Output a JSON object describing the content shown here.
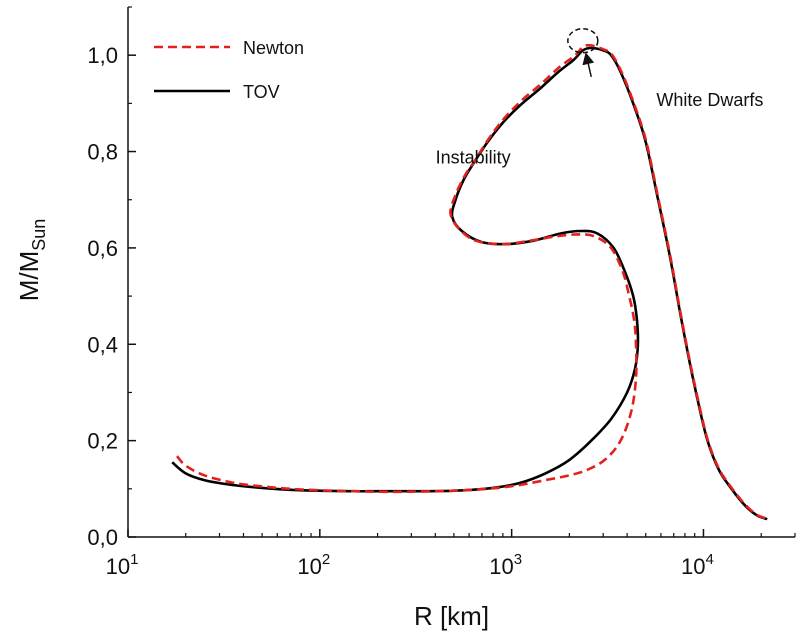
{
  "chart_data": {
    "type": "line",
    "title": "",
    "xlabel": "R [km]",
    "ylabel_main": "M/M",
    "ylabel_sub": "Sun",
    "xscale": "log",
    "xlim": [
      10,
      30000
    ],
    "ylim": [
      0,
      1.1
    ],
    "x_ticks": [
      {
        "value": 10,
        "base": "10",
        "exp": "1"
      },
      {
        "value": 100,
        "base": "10",
        "exp": "2"
      },
      {
        "value": 1000,
        "base": "10",
        "exp": "3"
      },
      {
        "value": 10000,
        "base": "10",
        "exp": "4"
      }
    ],
    "y_ticks": [
      {
        "value": 0.0,
        "label": "0,0"
      },
      {
        "value": 0.2,
        "label": "0,2"
      },
      {
        "value": 0.4,
        "label": "0,4"
      },
      {
        "value": 0.6,
        "label": "0,6"
      },
      {
        "value": 0.8,
        "label": "0,8"
      },
      {
        "value": 1.0,
        "label": "1,0"
      }
    ],
    "legend": {
      "position": "top-left",
      "entries": [
        {
          "name": "Newton",
          "color": "#e3211c",
          "style": "dashed"
        },
        {
          "name": "TOV",
          "color": "#000000",
          "style": "solid"
        }
      ]
    },
    "series": [
      {
        "name": "TOV",
        "color": "#000000",
        "style": "solid",
        "points": [
          [
            17,
            0.155
          ],
          [
            20,
            0.132
          ],
          [
            25,
            0.118
          ],
          [
            35,
            0.108
          ],
          [
            50,
            0.102
          ],
          [
            70,
            0.098
          ],
          [
            100,
            0.096
          ],
          [
            150,
            0.095
          ],
          [
            200,
            0.095
          ],
          [
            300,
            0.095
          ],
          [
            500,
            0.096
          ],
          [
            800,
            0.102
          ],
          [
            1100,
            0.112
          ],
          [
            1500,
            0.132
          ],
          [
            2000,
            0.16
          ],
          [
            2600,
            0.2
          ],
          [
            3300,
            0.245
          ],
          [
            4000,
            0.3
          ],
          [
            4400,
            0.35
          ],
          [
            4550,
            0.4
          ],
          [
            4500,
            0.45
          ],
          [
            4300,
            0.5
          ],
          [
            3900,
            0.55
          ],
          [
            3400,
            0.6
          ],
          [
            2800,
            0.63
          ],
          [
            2300,
            0.635
          ],
          [
            1800,
            0.63
          ],
          [
            1300,
            0.615
          ],
          [
            950,
            0.608
          ],
          [
            700,
            0.612
          ],
          [
            550,
            0.635
          ],
          [
            490,
            0.665
          ],
          [
            510,
            0.7
          ],
          [
            560,
            0.74
          ],
          [
            620,
            0.77
          ],
          [
            750,
            0.82
          ],
          [
            900,
            0.86
          ],
          [
            1100,
            0.895
          ],
          [
            1400,
            0.93
          ],
          [
            1750,
            0.965
          ],
          [
            2100,
            0.99
          ],
          [
            2350,
            1.01
          ],
          [
            2600,
            1.015
          ],
          [
            3000,
            1.01
          ],
          [
            3300,
            1.0
          ],
          [
            3700,
            0.965
          ],
          [
            4300,
            0.9
          ],
          [
            5000,
            0.82
          ],
          [
            5800,
            0.7
          ],
          [
            6700,
            0.58
          ],
          [
            7600,
            0.46
          ],
          [
            8500,
            0.36
          ],
          [
            9500,
            0.27
          ],
          [
            10500,
            0.2
          ],
          [
            12000,
            0.14
          ],
          [
            14000,
            0.1
          ],
          [
            16500,
            0.065
          ],
          [
            19000,
            0.045
          ],
          [
            21500,
            0.037
          ]
        ]
      },
      {
        "name": "Newton",
        "color": "#e3211c",
        "style": "dashed",
        "points": [
          [
            18,
            0.168
          ],
          [
            20,
            0.148
          ],
          [
            25,
            0.128
          ],
          [
            35,
            0.113
          ],
          [
            50,
            0.105
          ],
          [
            70,
            0.1
          ],
          [
            100,
            0.097
          ],
          [
            150,
            0.095
          ],
          [
            200,
            0.094
          ],
          [
            300,
            0.094
          ],
          [
            500,
            0.096
          ],
          [
            800,
            0.101
          ],
          [
            1100,
            0.108
          ],
          [
            1500,
            0.118
          ],
          [
            2000,
            0.128
          ],
          [
            2500,
            0.14
          ],
          [
            3100,
            0.162
          ],
          [
            3700,
            0.2
          ],
          [
            4200,
            0.26
          ],
          [
            4450,
            0.33
          ],
          [
            4450,
            0.4
          ],
          [
            4350,
            0.45
          ],
          [
            4100,
            0.5
          ],
          [
            3800,
            0.55
          ],
          [
            3300,
            0.6
          ],
          [
            2700,
            0.624
          ],
          [
            2200,
            0.628
          ],
          [
            1700,
            0.624
          ],
          [
            1250,
            0.615
          ],
          [
            900,
            0.608
          ],
          [
            650,
            0.615
          ],
          [
            530,
            0.64
          ],
          [
            480,
            0.672
          ],
          [
            510,
            0.71
          ],
          [
            570,
            0.75
          ],
          [
            640,
            0.78
          ],
          [
            770,
            0.83
          ],
          [
            920,
            0.87
          ],
          [
            1120,
            0.905
          ],
          [
            1420,
            0.94
          ],
          [
            1770,
            0.975
          ],
          [
            2120,
            0.998
          ],
          [
            2370,
            1.018
          ],
          [
            2620,
            1.02
          ],
          [
            3020,
            1.012
          ],
          [
            3320,
            1.002
          ],
          [
            3720,
            0.967
          ],
          [
            4320,
            0.902
          ],
          [
            5020,
            0.822
          ],
          [
            5820,
            0.702
          ],
          [
            6720,
            0.582
          ],
          [
            7620,
            0.462
          ],
          [
            8520,
            0.362
          ],
          [
            9520,
            0.272
          ],
          [
            10520,
            0.202
          ],
          [
            12020,
            0.142
          ],
          [
            14020,
            0.102
          ],
          [
            16520,
            0.067
          ],
          [
            19020,
            0.046
          ],
          [
            21500,
            0.038
          ]
        ]
      }
    ],
    "annotations": [
      {
        "text": "Instability",
        "x": 630,
        "y": 0.775
      },
      {
        "text": "White Dwarfs",
        "x": 10800,
        "y": 0.895
      }
    ],
    "marker": {
      "type": "dashed-circle",
      "x": 2350,
      "y": 1.03,
      "arrow_from_x": 2600,
      "arrow_from_y": 0.955,
      "arrow_to_x": 2450,
      "arrow_to_y": 1.0
    }
  }
}
